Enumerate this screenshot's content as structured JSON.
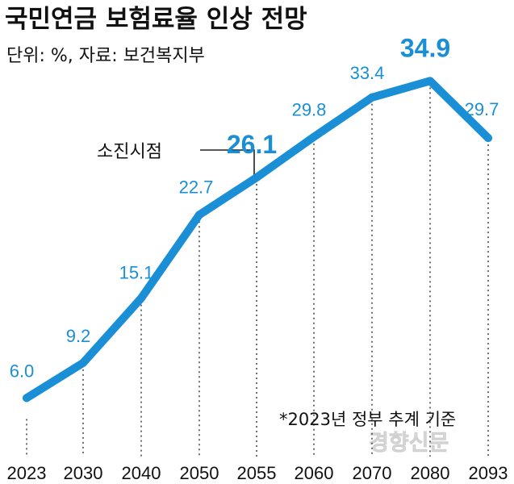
{
  "title": "국민연금 보험료율 인상 전망",
  "subtitle": "단위: %, 자료: 보건복지부",
  "watermark": "경향신문",
  "chart_data": {
    "type": "line",
    "title": "국민연금 보험료율 인상 전망",
    "unit": "%",
    "source": "보건복지부",
    "categories": [
      "2023",
      "2030",
      "2040",
      "2050",
      "2055",
      "2060",
      "2070",
      "2080",
      "2093"
    ],
    "values": [
      6.0,
      9.2,
      15.1,
      22.7,
      26.1,
      29.8,
      33.4,
      34.9,
      29.7
    ],
    "labels": [
      "6.0",
      "9.2",
      "15.1",
      "22.7",
      "26.1",
      "29.8",
      "33.4",
      "34.9",
      "29.7"
    ],
    "highlight_indices": [
      4,
      7
    ],
    "ylim": [
      0,
      38
    ],
    "grid": false,
    "annotation": {
      "text": "소진시점",
      "target_index": 4
    },
    "note": "*2023년 정부 추계 기준",
    "line_color": "#1a8fd6"
  }
}
